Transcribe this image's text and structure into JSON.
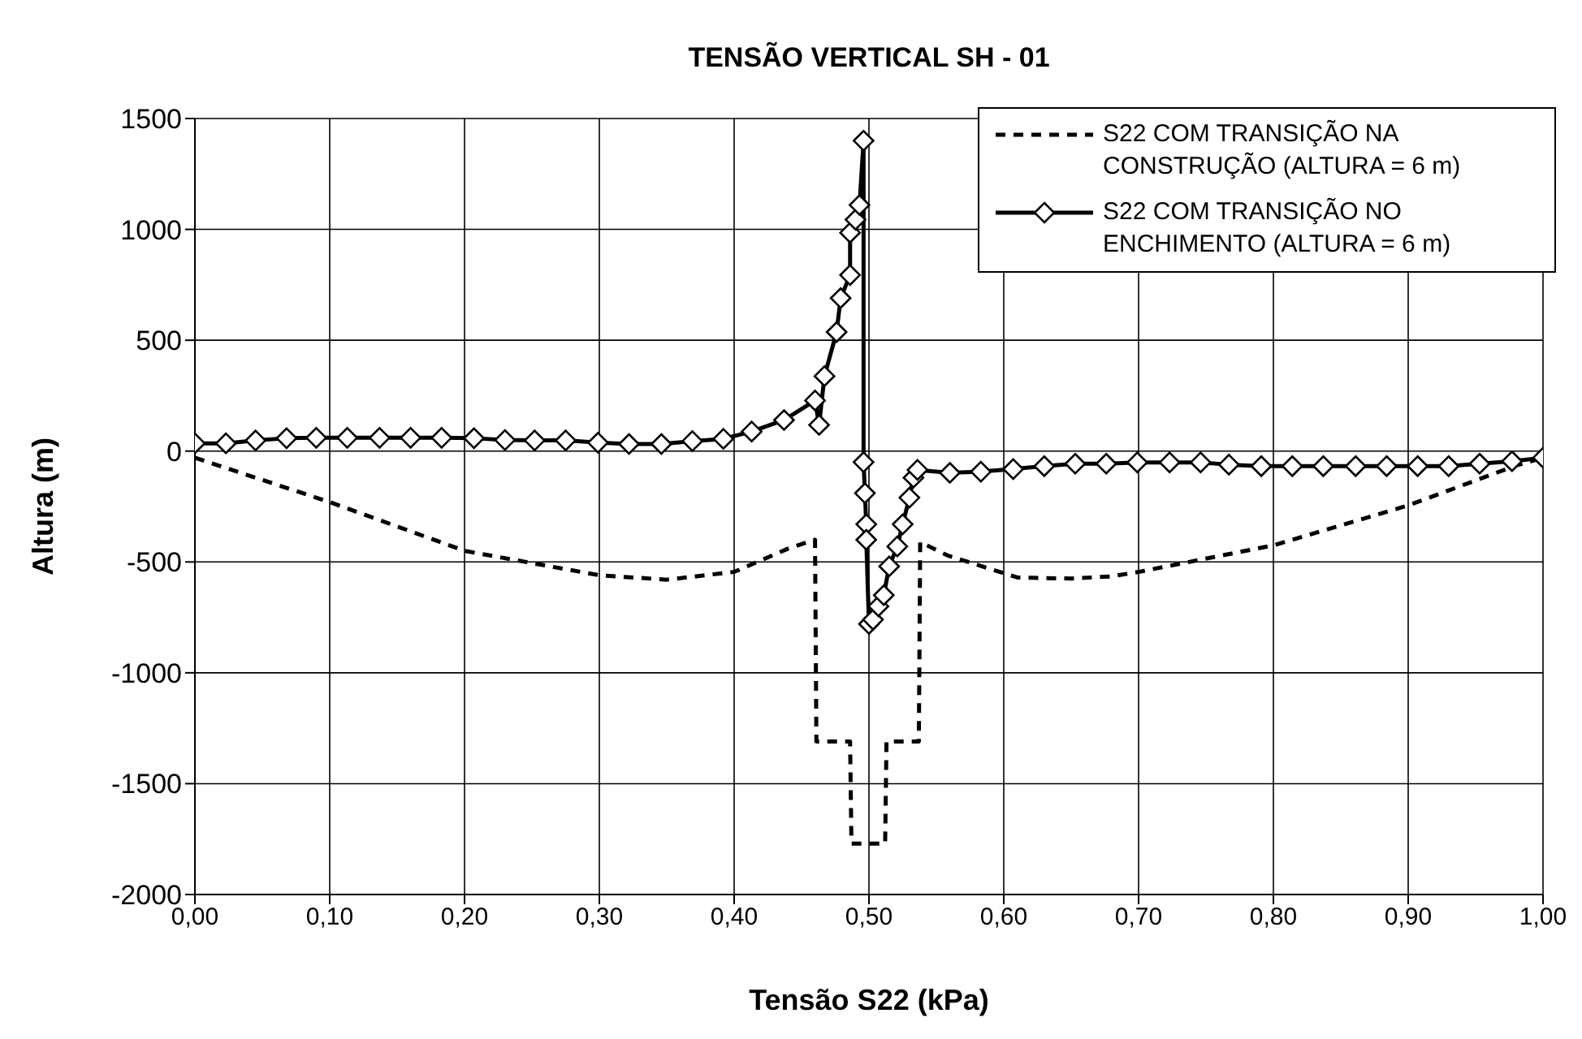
{
  "chart_data": {
    "type": "line",
    "title": "TENSÃO VERTICAL SH - 01",
    "xlabel": "Tensão S22 (kPa)",
    "ylabel": "Altura (m)",
    "xlim": [
      0,
      1
    ],
    "ylim": [
      -2000,
      1500
    ],
    "xticks": [
      {
        "value": 0,
        "label": "0,00"
      },
      {
        "value": 0.1,
        "label": "0,10"
      },
      {
        "value": 0.2,
        "label": "0,20"
      },
      {
        "value": 0.3,
        "label": "0,30"
      },
      {
        "value": 0.4,
        "label": "0,40"
      },
      {
        "value": 0.5,
        "label": "0,50"
      },
      {
        "value": 0.6,
        "label": "0,60"
      },
      {
        "value": 0.7,
        "label": "0,70"
      },
      {
        "value": 0.8,
        "label": "0,80"
      },
      {
        "value": 0.9,
        "label": "0,90"
      },
      {
        "value": 1,
        "label": "1,00"
      }
    ],
    "yticks": [
      -2000,
      -1500,
      -1000,
      -500,
      0,
      500,
      1000,
      1500
    ],
    "grid": true,
    "legend": "top right",
    "series": [
      {
        "name": "S22 COM TRANSIÇÃO NA CONSTRUÇÃO (ALTURA = 6 m)",
        "color": "#000000",
        "line_style": "dashed",
        "marker": "none",
        "x": [
          0,
          0.1,
          0.2,
          0.3,
          0.35,
          0.4,
          0.44,
          0.46,
          0.461,
          0.486,
          0.487,
          0.512,
          0.513,
          0.537,
          0.538,
          0.558,
          0.61,
          0.65,
          0.68,
          0.7,
          0.8,
          0.9,
          0.98,
          1
        ],
        "values": [
          -30,
          -230,
          -450,
          -560,
          -580,
          -545,
          -440,
          -400,
          -1310,
          -1310,
          -1770,
          -1770,
          -1310,
          -1310,
          -410,
          -470,
          -570,
          -575,
          -565,
          -545,
          -425,
          -245,
          -65,
          -30
        ]
      },
      {
        "name": "S22 COM TRANSIÇÃO NO ENCHIMENTO (ALTURA = 6 m)",
        "color": "#000000",
        "line_style": "solid",
        "marker": "diamond",
        "x": [
          0,
          0.023,
          0.045,
          0.068,
          0.09,
          0.113,
          0.137,
          0.16,
          0.183,
          0.207,
          0.23,
          0.252,
          0.275,
          0.299,
          0.322,
          0.346,
          0.369,
          0.392,
          0.413,
          0.437,
          0.46,
          0.463,
          0.467,
          0.476,
          0.479,
          0.486,
          0.486,
          0.49,
          0.493,
          0.496,
          0.496,
          0.497,
          0.498,
          0.498,
          0.5,
          0.503,
          0.507,
          0.511,
          0.515,
          0.521,
          0.525,
          0.53,
          0.533,
          0.536,
          0.56,
          0.583,
          0.607,
          0.63,
          0.653,
          0.676,
          0.699,
          0.723,
          0.746,
          0.767,
          0.791,
          0.814,
          0.837,
          0.861,
          0.884,
          0.907,
          0.93,
          0.953,
          0.977,
          1
        ],
        "values": [
          35,
          35,
          48,
          58,
          60,
          60,
          60,
          60,
          60,
          58,
          50,
          48,
          48,
          38,
          32,
          32,
          45,
          55,
          88,
          140,
          228,
          118,
          338,
          537,
          690,
          794,
          985,
          1044,
          1110,
          1400,
          -50,
          -190,
          -330,
          -400,
          -780,
          -760,
          -700,
          -650,
          -520,
          -430,
          -330,
          -210,
          -120,
          -85,
          -98,
          -93,
          -81,
          -68,
          -57,
          -57,
          -51,
          -51,
          -51,
          -61,
          -68,
          -68,
          -68,
          -68,
          -68,
          -68,
          -68,
          -57,
          -46,
          -30
        ]
      }
    ]
  }
}
